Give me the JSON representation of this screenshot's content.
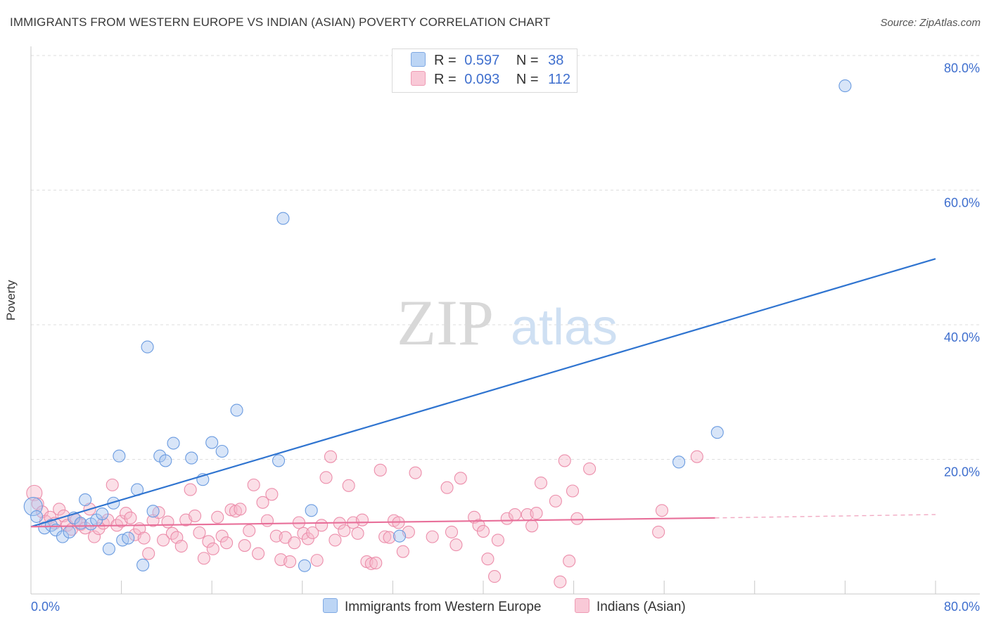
{
  "chart_data": {
    "type": "scatter",
    "title": "IMMIGRANTS FROM WESTERN EUROPE VS INDIAN (ASIAN) POVERTY CORRELATION CHART",
    "source": "Source: ZipAtlas.com",
    "xlabel": "",
    "ylabel": "Poverty",
    "xlim": [
      0,
      80
    ],
    "ylim": [
      0,
      80
    ],
    "x_tick_labels": [
      "0.0%",
      "80.0%"
    ],
    "y_tick_labels": [
      "20.0%",
      "40.0%",
      "60.0%",
      "80.0%"
    ],
    "y_ticks": [
      20,
      40,
      60,
      80
    ],
    "watermark": {
      "zip": "ZIP",
      "atlas": "atlas"
    },
    "legend": {
      "r_label": "R =",
      "n_label": "N =",
      "rows": [
        {
          "r": "0.597",
          "n": "38"
        },
        {
          "r": "0.093",
          "n": "112"
        }
      ]
    },
    "series": [
      {
        "name": "Immigrants from Western Europe",
        "color": "#a9c6ef",
        "stroke": "#6a9be0",
        "trend_color": "#2f74d0",
        "trend": {
          "x0": 0,
          "y0": 10.0,
          "x1": 80,
          "y1": 49.8
        },
        "points": [
          [
            0.2,
            13.0
          ],
          [
            0.5,
            11.5
          ],
          [
            1.2,
            9.8
          ],
          [
            1.8,
            10.2
          ],
          [
            2.2,
            9.5
          ],
          [
            2.8,
            8.5
          ],
          [
            3.4,
            9.2
          ],
          [
            3.8,
            11.3
          ],
          [
            4.4,
            10.5
          ],
          [
            4.8,
            14.0
          ],
          [
            5.3,
            10.4
          ],
          [
            5.8,
            11.0
          ],
          [
            6.3,
            11.9
          ],
          [
            6.9,
            6.7
          ],
          [
            7.3,
            13.5
          ],
          [
            7.8,
            20.5
          ],
          [
            8.1,
            8.0
          ],
          [
            8.6,
            8.3
          ],
          [
            9.4,
            15.5
          ],
          [
            9.9,
            4.3
          ],
          [
            10.3,
            36.7
          ],
          [
            10.8,
            12.3
          ],
          [
            11.4,
            20.5
          ],
          [
            11.9,
            19.8
          ],
          [
            12.6,
            22.4
          ],
          [
            14.2,
            20.2
          ],
          [
            15.2,
            17.0
          ],
          [
            16.0,
            22.5
          ],
          [
            16.9,
            21.2
          ],
          [
            18.2,
            27.3
          ],
          [
            21.9,
            19.8
          ],
          [
            22.3,
            55.8
          ],
          [
            24.2,
            4.2
          ],
          [
            24.8,
            12.4
          ],
          [
            32.6,
            8.6
          ],
          [
            57.3,
            19.6
          ],
          [
            60.7,
            24.0
          ],
          [
            72.0,
            75.5
          ]
        ]
      },
      {
        "name": "Indians (Asian)",
        "color": "#f6b8ca",
        "stroke": "#ec8eab",
        "trend_color": "#e8709a",
        "trend": {
          "x0": 0,
          "y0": 10.0,
          "x1": 60.5,
          "y1": 11.3
        },
        "trend_dashed": {
          "x0": 60.5,
          "y0": 11.3,
          "x1": 80,
          "y1": 11.8
        },
        "points": [
          [
            0.3,
            15.0
          ],
          [
            0.6,
            13.4
          ],
          [
            1.0,
            12.2
          ],
          [
            1.3,
            10.8
          ],
          [
            1.7,
            11.4
          ],
          [
            2.1,
            10.5
          ],
          [
            2.5,
            12.6
          ],
          [
            2.9,
            11.6
          ],
          [
            3.2,
            10.2
          ],
          [
            3.6,
            9.6
          ],
          [
            4.0,
            11.0
          ],
          [
            4.4,
            10.3
          ],
          [
            4.8,
            9.8
          ],
          [
            5.2,
            12.6
          ],
          [
            5.6,
            8.5
          ],
          [
            6.0,
            9.7
          ],
          [
            6.4,
            10.5
          ],
          [
            6.8,
            11.0
          ],
          [
            7.2,
            16.2
          ],
          [
            7.6,
            10.2
          ],
          [
            8.0,
            10.8
          ],
          [
            8.4,
            12.0
          ],
          [
            8.8,
            11.3
          ],
          [
            9.2,
            8.8
          ],
          [
            9.6,
            9.7
          ],
          [
            10.0,
            8.3
          ],
          [
            10.4,
            6.0
          ],
          [
            10.8,
            10.9
          ],
          [
            11.3,
            12.1
          ],
          [
            11.7,
            8.0
          ],
          [
            12.1,
            10.7
          ],
          [
            12.5,
            9.0
          ],
          [
            12.9,
            8.4
          ],
          [
            13.3,
            7.1
          ],
          [
            13.7,
            11.0
          ],
          [
            14.1,
            15.5
          ],
          [
            14.5,
            11.6
          ],
          [
            14.9,
            9.1
          ],
          [
            15.3,
            5.3
          ],
          [
            15.7,
            7.8
          ],
          [
            16.1,
            6.7
          ],
          [
            16.5,
            11.4
          ],
          [
            16.9,
            8.6
          ],
          [
            17.3,
            7.6
          ],
          [
            17.7,
            12.5
          ],
          [
            18.1,
            12.3
          ],
          [
            18.5,
            12.6
          ],
          [
            18.9,
            7.2
          ],
          [
            19.3,
            9.4
          ],
          [
            19.7,
            16.2
          ],
          [
            20.1,
            6.0
          ],
          [
            20.5,
            13.6
          ],
          [
            20.9,
            10.9
          ],
          [
            21.3,
            14.8
          ],
          [
            21.7,
            8.6
          ],
          [
            22.1,
            5.1
          ],
          [
            22.5,
            8.4
          ],
          [
            22.9,
            4.8
          ],
          [
            23.3,
            7.6
          ],
          [
            23.7,
            10.6
          ],
          [
            24.1,
            9.0
          ],
          [
            24.5,
            8.2
          ],
          [
            24.9,
            9.1
          ],
          [
            25.3,
            5.0
          ],
          [
            25.7,
            10.2
          ],
          [
            26.1,
            17.3
          ],
          [
            26.5,
            20.4
          ],
          [
            26.9,
            8.0
          ],
          [
            27.3,
            10.5
          ],
          [
            27.7,
            9.4
          ],
          [
            28.1,
            16.1
          ],
          [
            28.5,
            10.6
          ],
          [
            28.9,
            9.0
          ],
          [
            29.3,
            11.0
          ],
          [
            29.7,
            4.8
          ],
          [
            30.1,
            4.5
          ],
          [
            30.5,
            4.6
          ],
          [
            30.9,
            18.4
          ],
          [
            31.3,
            8.5
          ],
          [
            31.7,
            8.4
          ],
          [
            32.1,
            10.9
          ],
          [
            32.5,
            10.6
          ],
          [
            32.9,
            6.3
          ],
          [
            33.4,
            9.2
          ],
          [
            34.0,
            18.0
          ],
          [
            35.5,
            8.5
          ],
          [
            36.8,
            15.8
          ],
          [
            37.2,
            9.2
          ],
          [
            37.6,
            7.3
          ],
          [
            38.0,
            17.2
          ],
          [
            39.2,
            11.4
          ],
          [
            39.6,
            10.2
          ],
          [
            40.0,
            9.3
          ],
          [
            40.4,
            5.2
          ],
          [
            41.0,
            2.6
          ],
          [
            41.3,
            8.0
          ],
          [
            42.1,
            11.2
          ],
          [
            42.8,
            11.8
          ],
          [
            43.9,
            11.8
          ],
          [
            44.3,
            10.1
          ],
          [
            44.7,
            12.0
          ],
          [
            45.1,
            16.5
          ],
          [
            46.4,
            13.8
          ],
          [
            46.8,
            1.8
          ],
          [
            47.2,
            19.8
          ],
          [
            47.6,
            4.9
          ],
          [
            47.9,
            15.3
          ],
          [
            48.3,
            11.2
          ],
          [
            49.4,
            18.6
          ],
          [
            55.5,
            9.2
          ],
          [
            55.8,
            12.4
          ],
          [
            58.9,
            20.4
          ]
        ]
      }
    ]
  }
}
